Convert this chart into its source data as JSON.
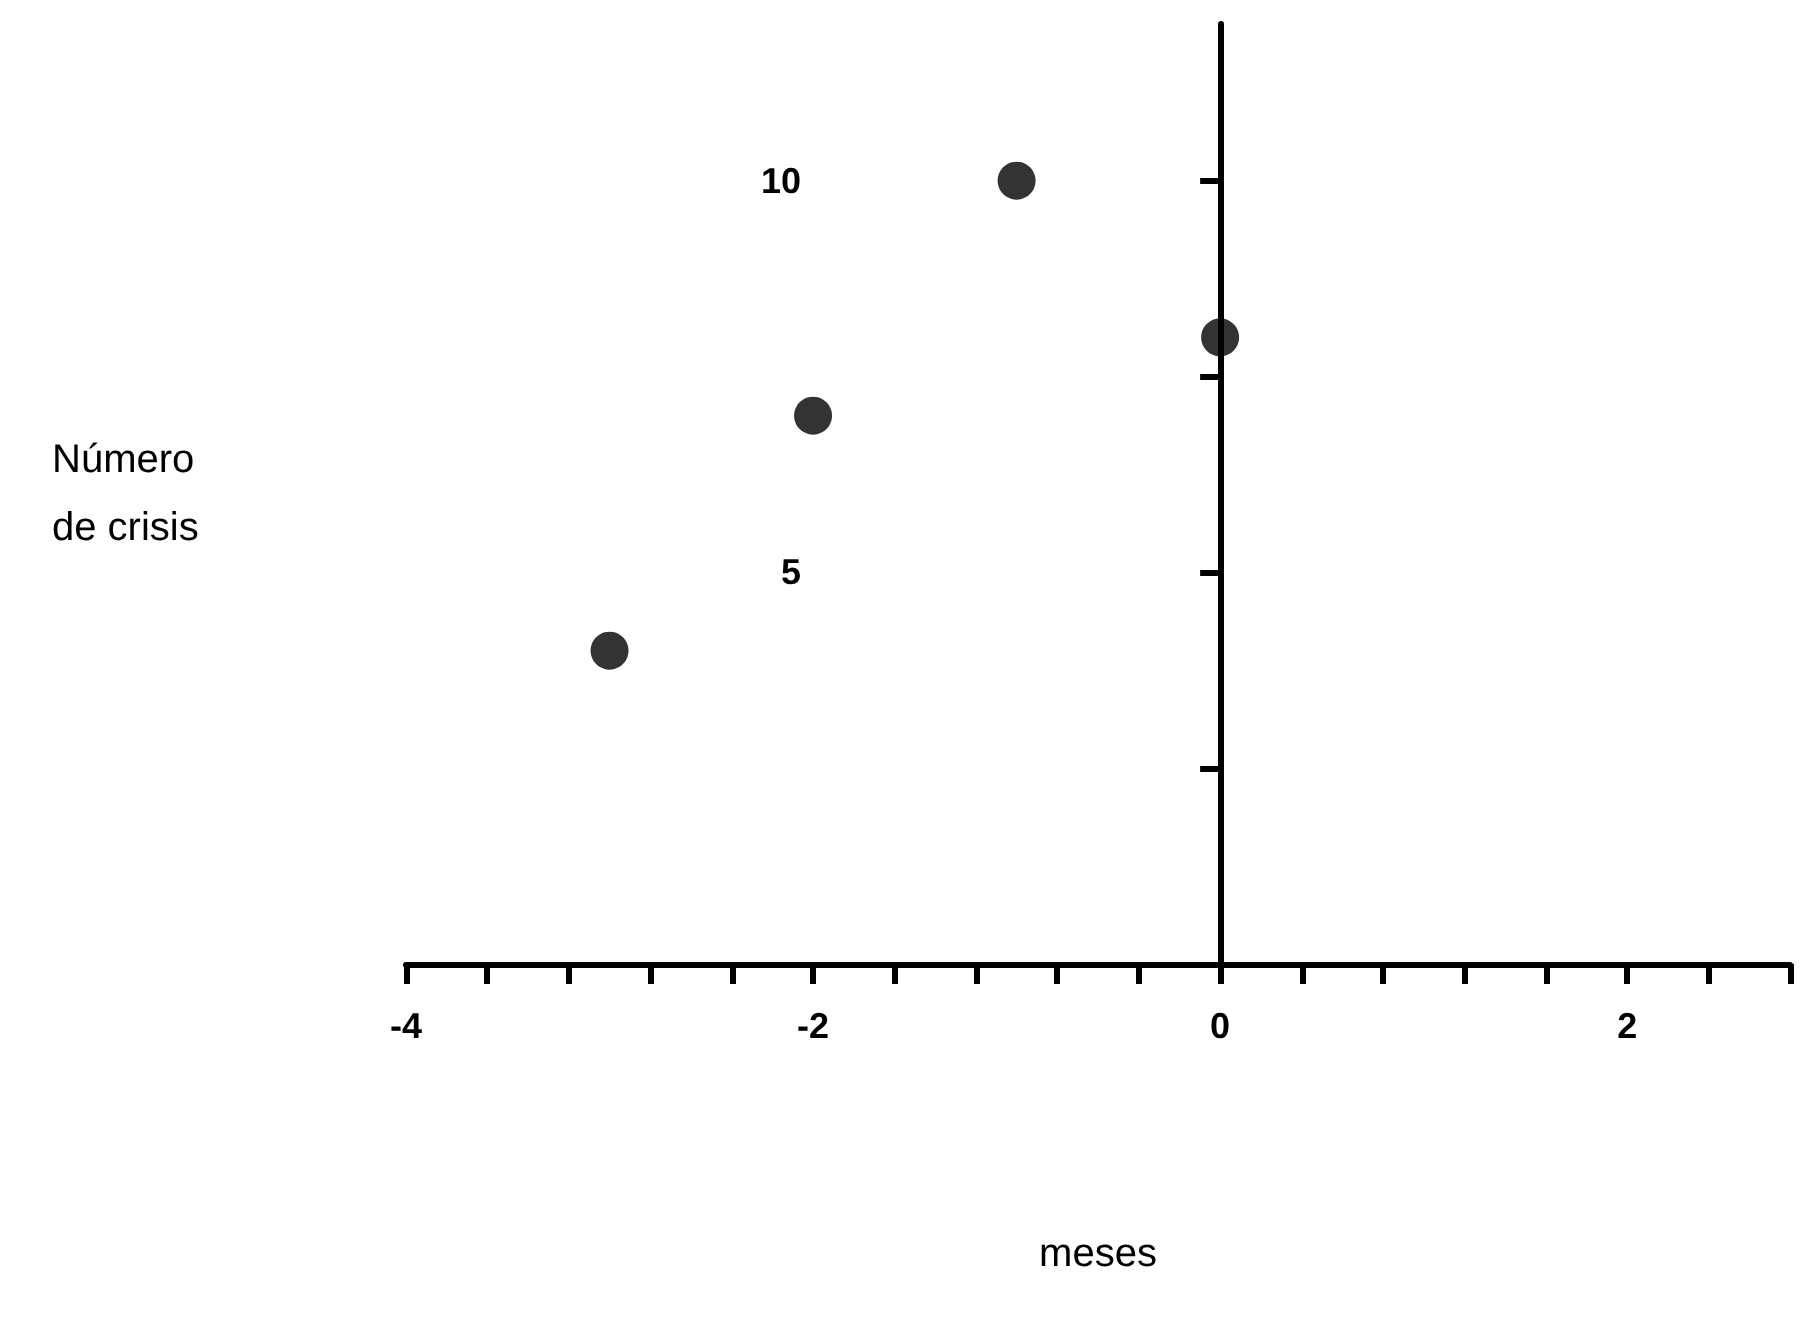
{
  "chart_data": {
    "type": "scatter",
    "xlabel": "meses",
    "ylabel": "Número\nde crisis",
    "x": [
      -3,
      -2,
      -1,
      0
    ],
    "series": [
      {
        "color": "#000000",
        "values": [
          4,
          7,
          10,
          8
        ]
      }
    ],
    "marker": "circle",
    "xlim": [
      -4,
      2.8
    ],
    "xticks": [
      -4,
      {
        "value": -3.6,
        "label": null
      },
      {
        "value": -3.2,
        "label": null
      },
      {
        "value": -2.8,
        "label": null
      },
      {
        "value": -2.4,
        "label": null
      },
      -2,
      {
        "value": -1.6,
        "label": null
      },
      {
        "value": -1.2,
        "label": null
      },
      {
        "value": -0.8,
        "label": null
      },
      {
        "value": -0.4,
        "label": null
      },
      0,
      {
        "value": 0.4,
        "label": null
      },
      {
        "value": 0.8,
        "label": null
      },
      {
        "value": 1.2,
        "label": null
      },
      {
        "value": 1.6,
        "label": null
      },
      2,
      {
        "value": 2.4,
        "label": null
      },
      {
        "value": 2.8,
        "label": null
      }
    ],
    "ylim": [
      0,
      12
    ],
    "yticks": [
      {
        "value": 2.5,
        "label": null
      },
      5,
      {
        "value": 7.5,
        "label": null
      },
      10
    ]
  }
}
